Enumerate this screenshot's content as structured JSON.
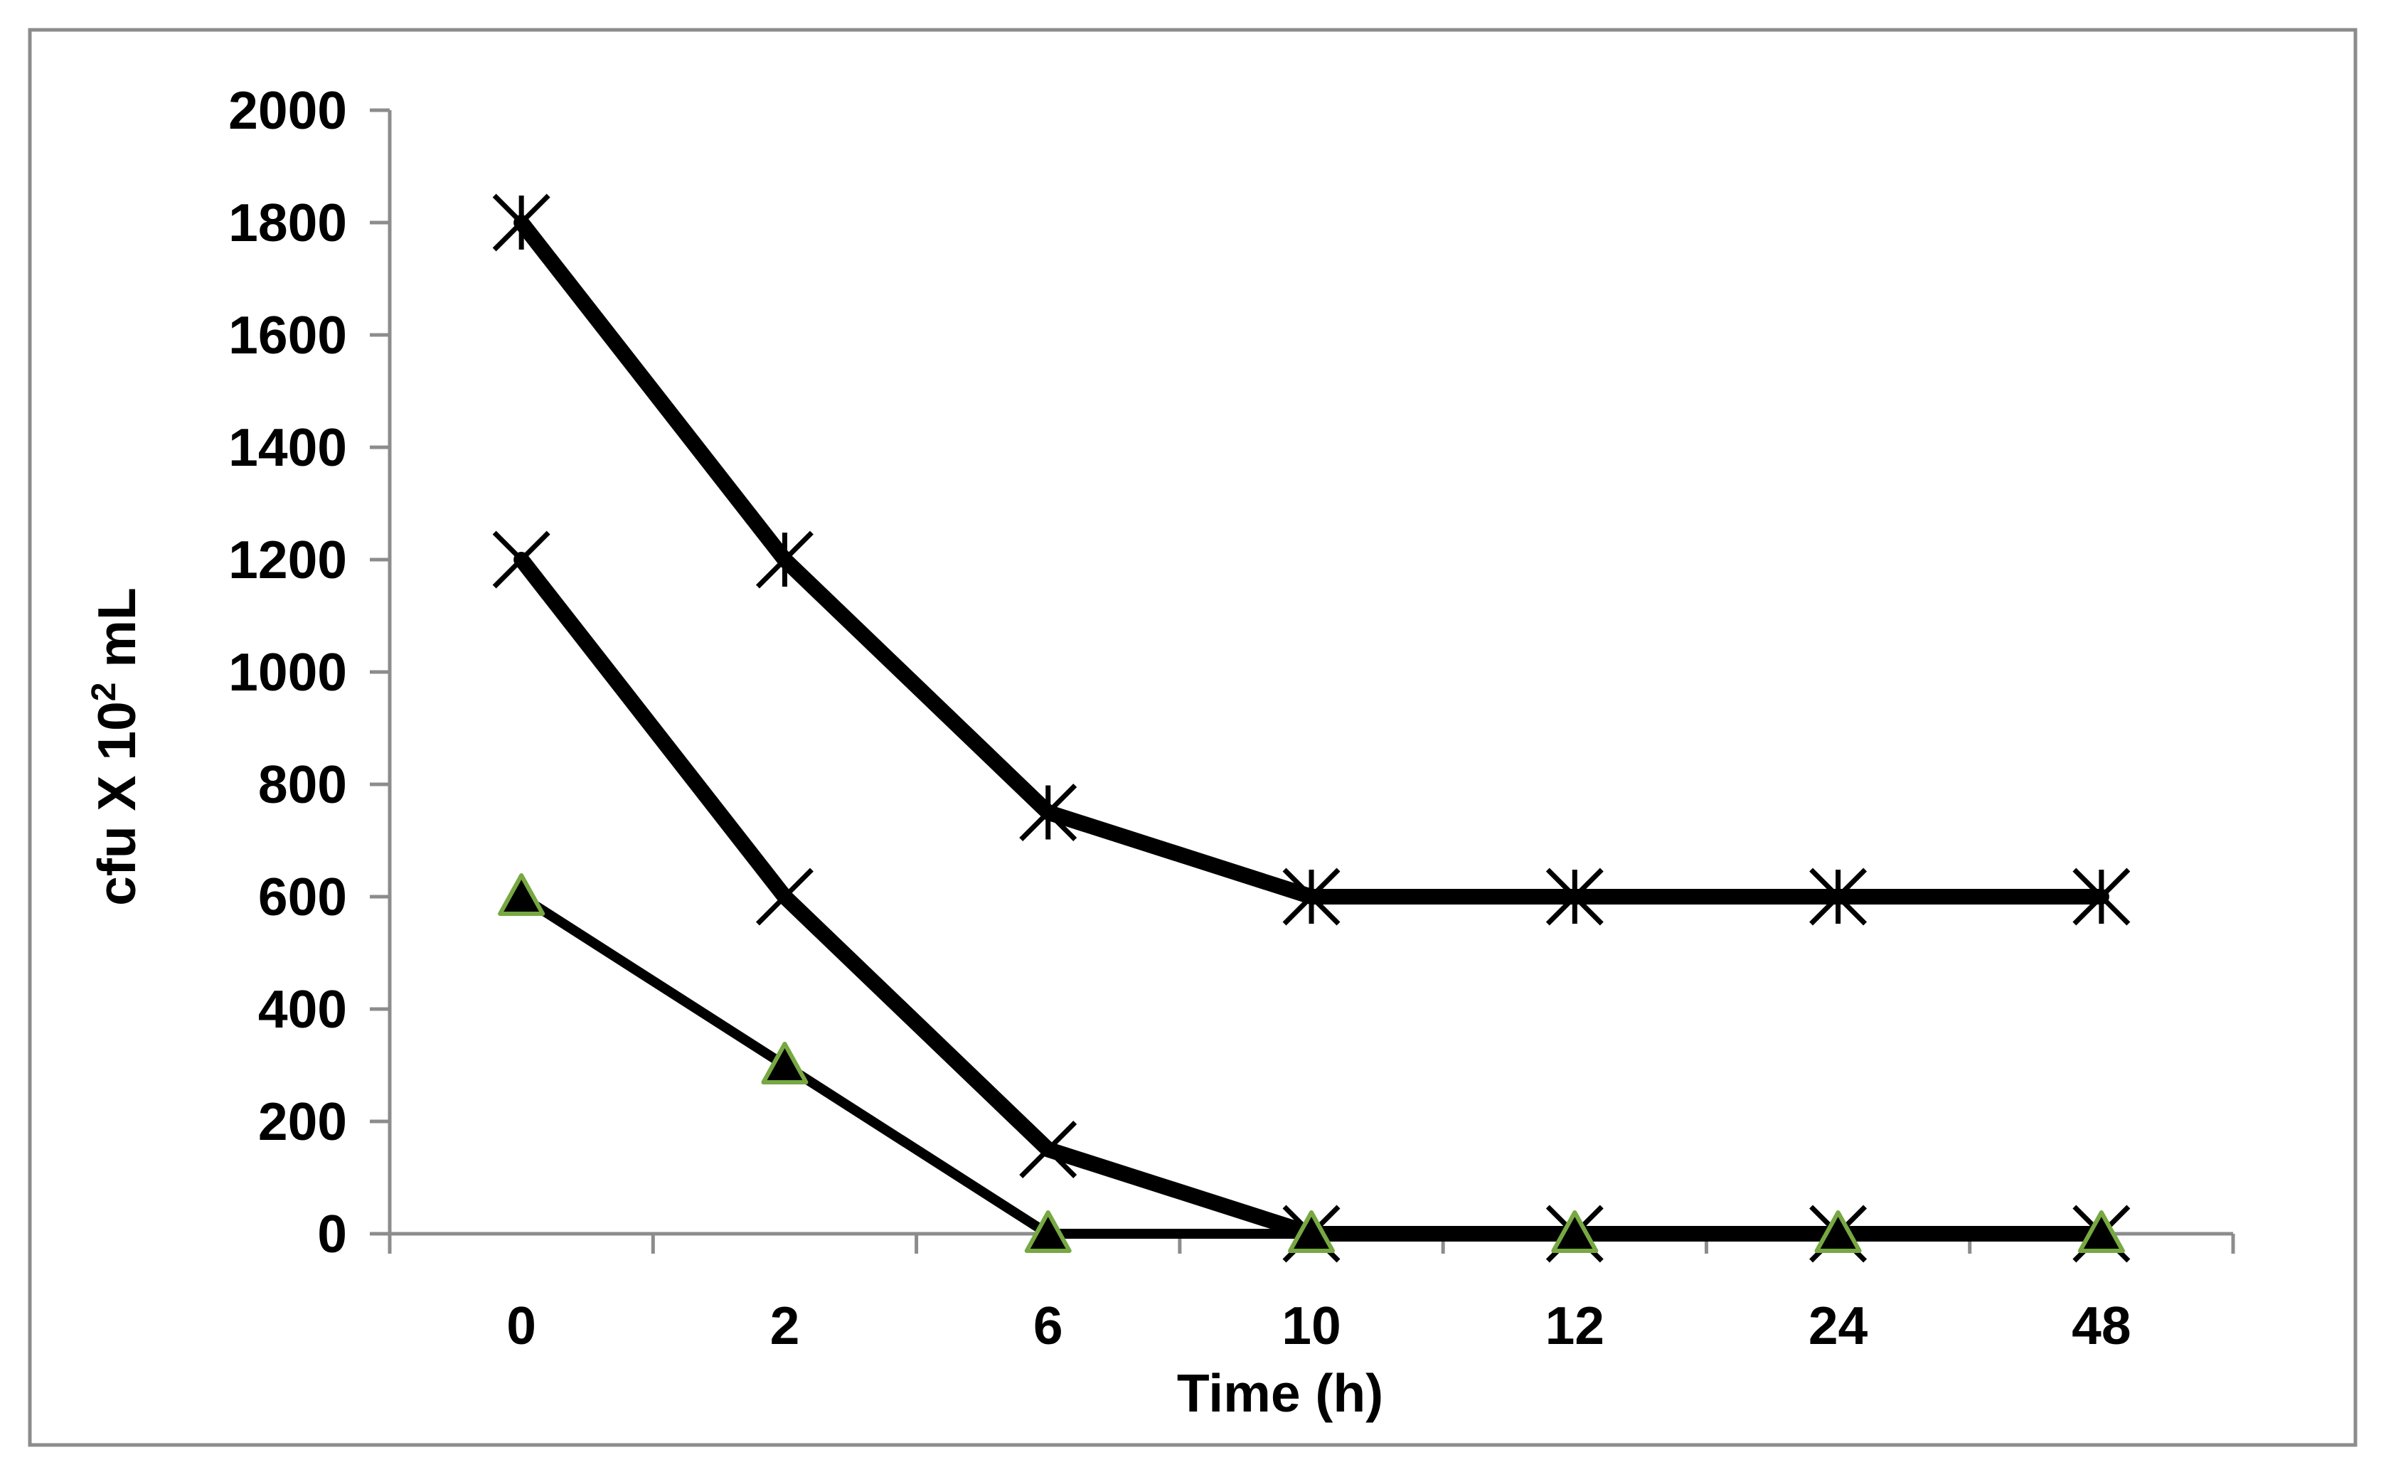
{
  "chart_data": {
    "type": "line",
    "title": "",
    "xlabel": "Time (h)",
    "ylabel_parts": {
      "base": "cfu X 10",
      "superscript": "2",
      "suffix": " mL"
    },
    "categories": [
      "0",
      "2",
      "6",
      "10",
      "12",
      "24",
      "48"
    ],
    "ylim": [
      0,
      2000
    ],
    "y_ticks": [
      0,
      200,
      400,
      600,
      800,
      1000,
      1200,
      1400,
      1600,
      1800,
      2000
    ],
    "grid": false,
    "legend": "none",
    "series": [
      {
        "name": "series-1",
        "marker": "asterisk",
        "color": "#000000",
        "values": [
          1800,
          1200,
          750,
          600,
          600,
          600,
          600
        ]
      },
      {
        "name": "series-2",
        "marker": "x",
        "color": "#000000",
        "values": [
          1200,
          600,
          150,
          0,
          0,
          0,
          0
        ]
      },
      {
        "name": "series-3",
        "marker": "triangle",
        "color": "#000000",
        "marker_edge_color": "#77A842",
        "values": [
          600,
          300,
          0,
          0,
          0,
          0,
          0
        ]
      }
    ]
  }
}
